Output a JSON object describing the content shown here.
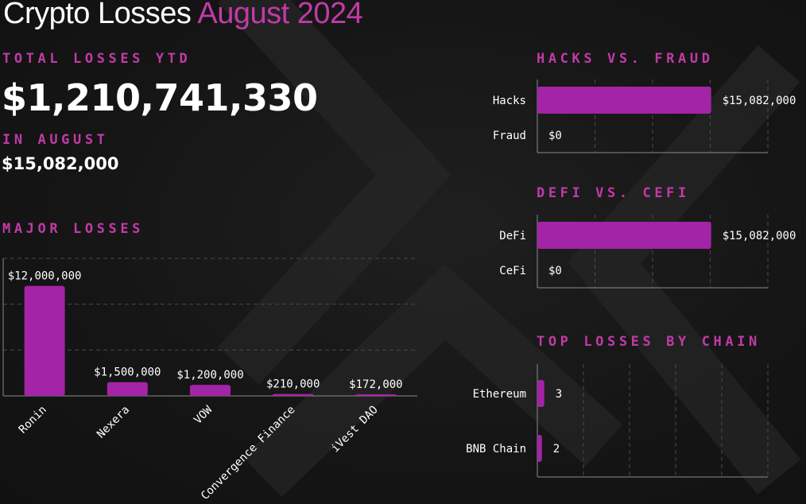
{
  "header": {
    "title_main": "Crypto Losses",
    "title_period": "August 2024"
  },
  "summary": {
    "ytd_label": "TOTAL LOSSES YTD",
    "ytd_value": "$1,210,741,330",
    "month_label": "IN AUGUST",
    "month_value": "$15,082,000"
  },
  "colors": {
    "accent": "#c23aa8",
    "bar": "#a324a6",
    "axis": "#8a8a8a",
    "grid": "#4a4a4a",
    "text": "#ffffff"
  },
  "chart_data": [
    {
      "id": "major_losses",
      "type": "bar",
      "title": "MAJOR LOSSES",
      "categories": [
        "Ronin",
        "Nexera",
        "VOW",
        "Convergence Finance",
        "iVest DAO"
      ],
      "values": [
        12000000,
        1500000,
        1200000,
        210000,
        172000
      ],
      "data_labels": [
        "$12,000,000",
        "$1,500,000",
        "$1,200,000",
        "$210,000",
        "$172,000"
      ],
      "ylim": [
        0,
        15000000
      ],
      "grid": true
    },
    {
      "id": "hacks_vs_fraud",
      "type": "bar",
      "orientation": "horizontal",
      "title": "HACKS VS. FRAUD",
      "categories": [
        "Hacks",
        "Fraud"
      ],
      "values": [
        15082000,
        0
      ],
      "data_labels": [
        "$15,082,000",
        "$0"
      ],
      "xlim": [
        0,
        20000000
      ],
      "grid": true
    },
    {
      "id": "defi_vs_cefi",
      "type": "bar",
      "orientation": "horizontal",
      "title": "DEFI VS. CEFI",
      "categories": [
        "DeFi",
        "CeFi"
      ],
      "values": [
        15082000,
        0
      ],
      "data_labels": [
        "$15,082,000",
        "$0"
      ],
      "xlim": [
        0,
        20000000
      ],
      "grid": true
    },
    {
      "id": "losses_by_chain",
      "type": "bar",
      "orientation": "horizontal",
      "title": "TOP LOSSES BY CHAIN",
      "categories": [
        "Ethereum",
        "BNB Chain"
      ],
      "values": [
        3,
        2
      ],
      "data_labels": [
        "3",
        "2"
      ],
      "xlim": [
        0,
        100
      ],
      "grid": true
    }
  ]
}
